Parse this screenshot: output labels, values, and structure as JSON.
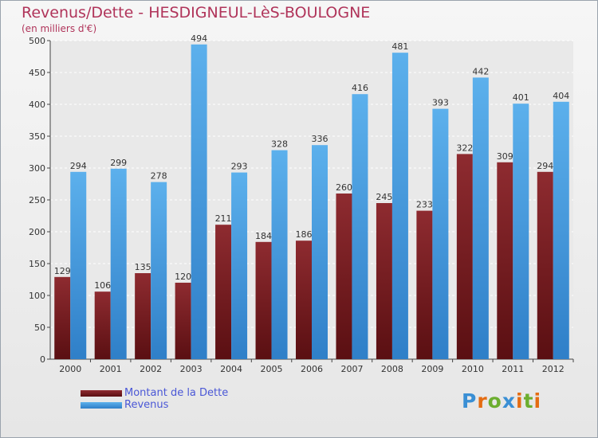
{
  "chart_data": {
    "type": "bar",
    "title": "Revenus/Dette - HESDIGNEUL-LèS-BOULOGNE",
    "subtitle": "(en milliers d'€)",
    "categories": [
      "2000",
      "2001",
      "2002",
      "2003",
      "2004",
      "2005",
      "2006",
      "2007",
      "2008",
      "2009",
      "2010",
      "2011",
      "2012"
    ],
    "series": [
      {
        "name": "Montant de la Dette",
        "color": "#7a1e22",
        "values": [
          129,
          106,
          135,
          120,
          211,
          184,
          186,
          260,
          245,
          233,
          322,
          309,
          294
        ]
      },
      {
        "name": "Revenus",
        "color": "#4fa3e3",
        "values": [
          294,
          299,
          278,
          494,
          293,
          328,
          336,
          416,
          481,
          393,
          442,
          401,
          404
        ]
      }
    ],
    "ylim": [
      0,
      500
    ],
    "yticks": [
      0,
      50,
      100,
      150,
      200,
      250,
      300,
      350,
      400,
      450,
      500
    ],
    "grid": true,
    "legend": "bottom-left"
  },
  "logo": {
    "text": "Proxiti"
  }
}
